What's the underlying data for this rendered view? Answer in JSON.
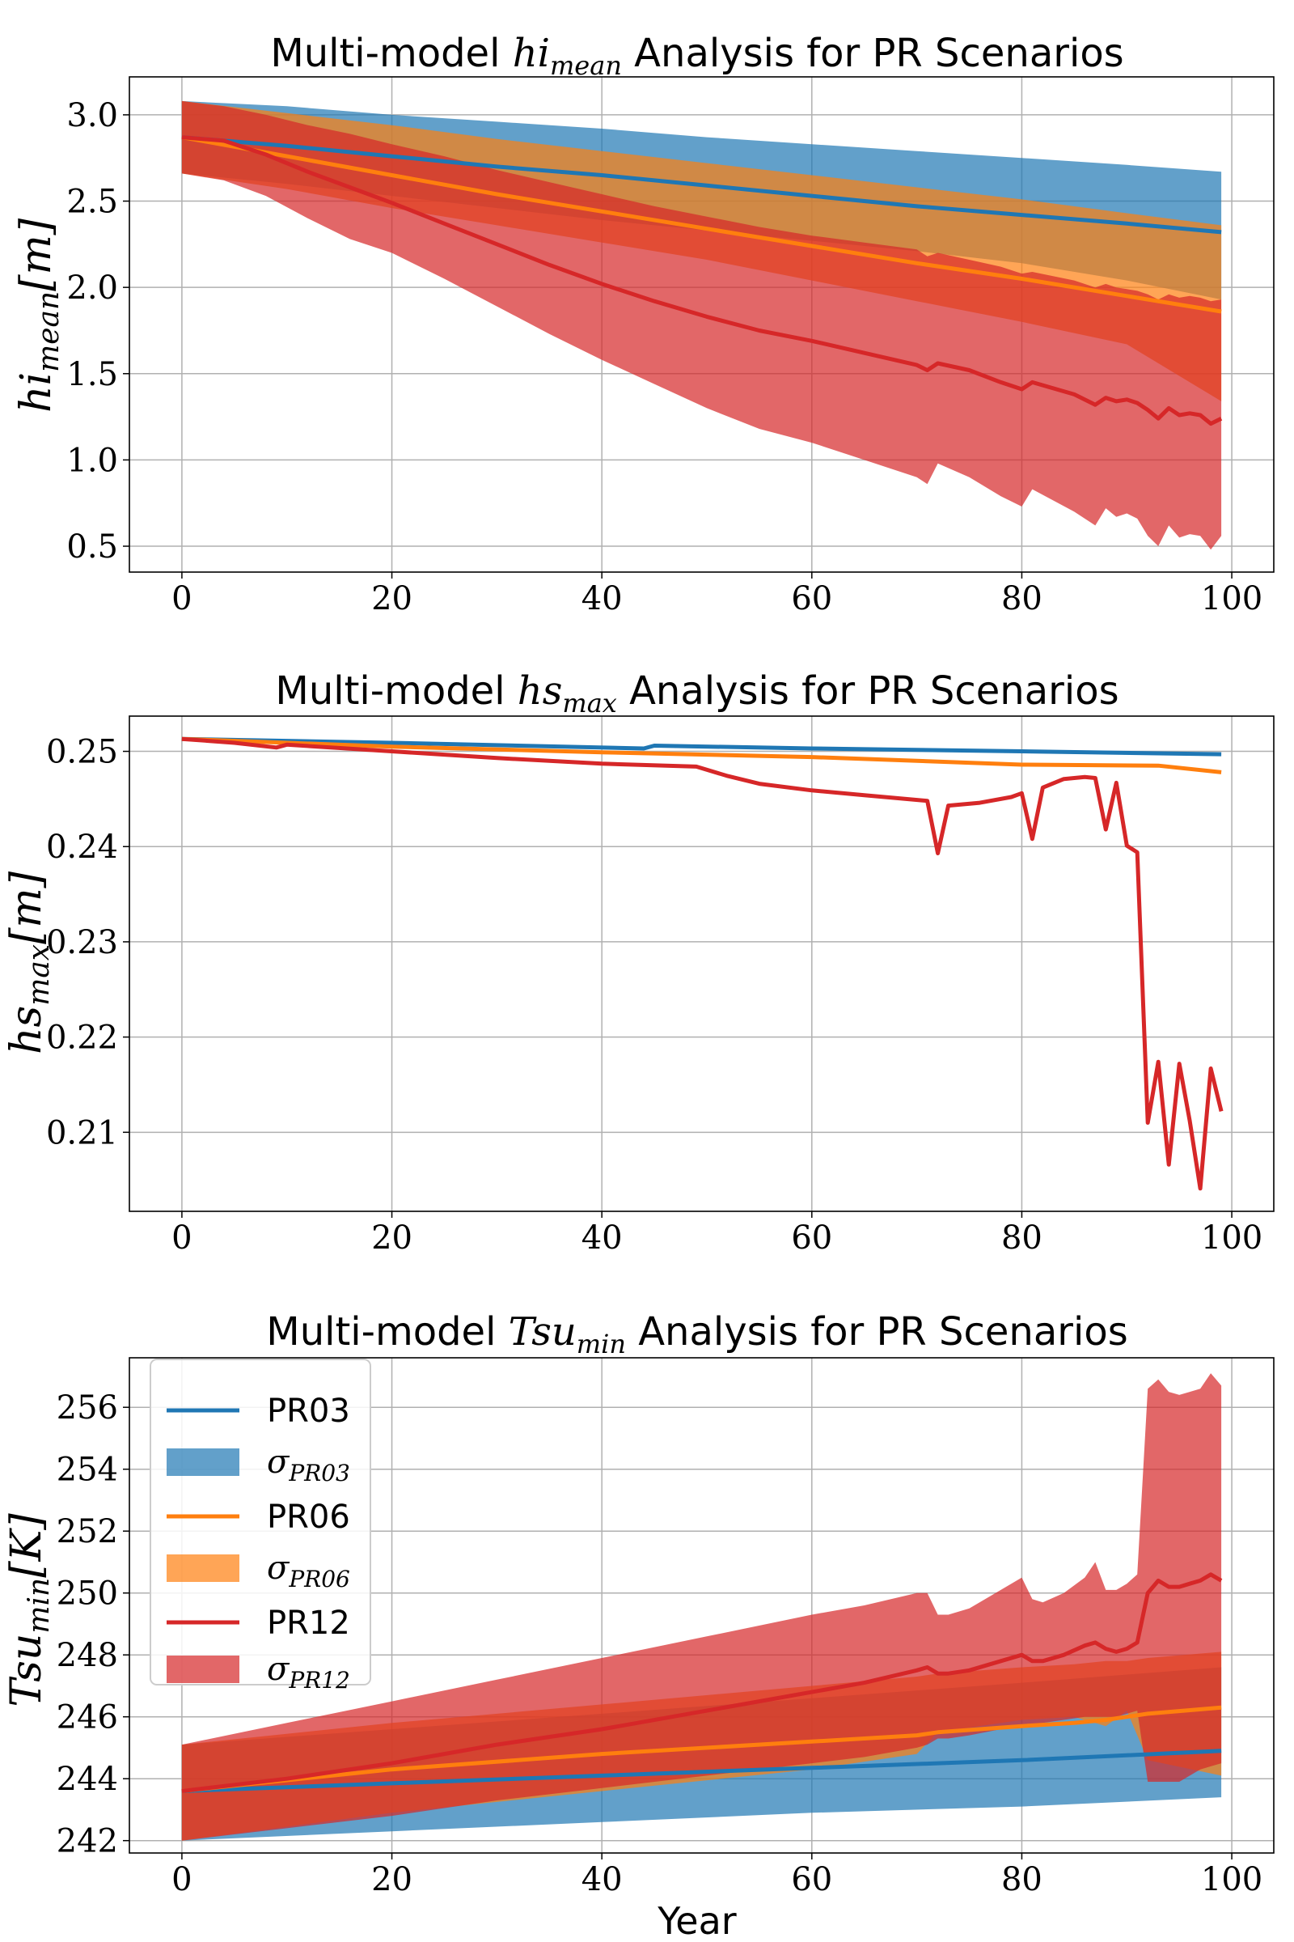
{
  "colors": {
    "PR03": "#1f77b4",
    "PR06": "#ff7f0e",
    "PR12": "#d62728"
  },
  "chart_data": [
    {
      "type": "line",
      "title_prefix": "Multi-model ",
      "title_var": "hi",
      "title_sub": "mean",
      "title_suffix": " Analysis for PR Scenarios",
      "ylabel": "hi",
      "ylabel_sub": "mean",
      "ylabel_unit": "[m]",
      "xlabel": "",
      "xlim": [
        -5,
        104
      ],
      "ylim": [
        0.35,
        3.22
      ],
      "xticks": [
        "0",
        "20",
        "40",
        "60",
        "80",
        "100"
      ],
      "yticks": [
        "0.5",
        "1.0",
        "1.5",
        "2.0",
        "2.5",
        "3.0"
      ],
      "grid": true,
      "series": [
        {
          "name": "PR03",
          "x": [
            0,
            10,
            20,
            30,
            40,
            50,
            60,
            70,
            80,
            90,
            99
          ],
          "y": [
            2.87,
            2.82,
            2.76,
            2.7,
            2.65,
            2.59,
            2.53,
            2.47,
            2.42,
            2.37,
            2.32
          ],
          "band_upper": [
            3.08,
            3.05,
            3.0,
            2.96,
            2.92,
            2.87,
            2.83,
            2.79,
            2.75,
            2.71,
            2.67
          ],
          "band_lower": [
            2.66,
            2.6,
            2.53,
            2.46,
            2.39,
            2.33,
            2.27,
            2.21,
            2.14,
            2.04,
            1.93
          ]
        },
        {
          "name": "PR06",
          "x": [
            0,
            10,
            20,
            30,
            40,
            50,
            60,
            70,
            80,
            90,
            99
          ],
          "y": [
            2.87,
            2.76,
            2.65,
            2.54,
            2.44,
            2.34,
            2.24,
            2.14,
            2.05,
            1.95,
            1.86
          ],
          "band_upper": [
            3.08,
            3.01,
            2.94,
            2.86,
            2.79,
            2.72,
            2.65,
            2.58,
            2.51,
            2.43,
            2.36
          ],
          "band_lower": [
            2.66,
            2.57,
            2.46,
            2.36,
            2.26,
            2.16,
            2.04,
            1.92,
            1.8,
            1.67,
            1.34
          ]
        },
        {
          "name": "PR12",
          "x": [
            0,
            4,
            8,
            12,
            16,
            20,
            25,
            30,
            35,
            40,
            45,
            50,
            55,
            60,
            65,
            70,
            71,
            72,
            75,
            78,
            80,
            81,
            85,
            87,
            88,
            89,
            90,
            91,
            92,
            93,
            94,
            95,
            96,
            97,
            98,
            99
          ],
          "y": [
            2.87,
            2.85,
            2.77,
            2.67,
            2.58,
            2.49,
            2.37,
            2.25,
            2.13,
            2.02,
            1.92,
            1.83,
            1.75,
            1.69,
            1.62,
            1.55,
            1.52,
            1.56,
            1.52,
            1.45,
            1.41,
            1.45,
            1.38,
            1.32,
            1.36,
            1.34,
            1.35,
            1.33,
            1.29,
            1.24,
            1.3,
            1.26,
            1.27,
            1.26,
            1.21,
            1.24
          ],
          "band_upper": [
            3.08,
            3.05,
            3.0,
            2.94,
            2.89,
            2.83,
            2.76,
            2.68,
            2.61,
            2.54,
            2.47,
            2.41,
            2.35,
            2.3,
            2.26,
            2.22,
            2.18,
            2.2,
            2.16,
            2.12,
            2.08,
            2.09,
            2.04,
            2.0,
            2.02,
            2.0,
            1.99,
            1.98,
            1.96,
            1.93,
            1.96,
            1.94,
            1.95,
            1.94,
            1.92,
            1.93
          ],
          "band_lower": [
            2.66,
            2.62,
            2.53,
            2.4,
            2.28,
            2.2,
            2.05,
            1.89,
            1.73,
            1.58,
            1.44,
            1.3,
            1.18,
            1.1,
            1.0,
            0.9,
            0.86,
            0.98,
            0.9,
            0.79,
            0.73,
            0.83,
            0.7,
            0.62,
            0.72,
            0.67,
            0.69,
            0.66,
            0.56,
            0.5,
            0.62,
            0.55,
            0.57,
            0.56,
            0.48,
            0.56
          ]
        }
      ]
    },
    {
      "type": "line",
      "title_prefix": "Multi-model ",
      "title_var": "hs",
      "title_sub": "max",
      "title_suffix": " Analysis for PR Scenarios",
      "ylabel": "hs",
      "ylabel_sub": "max",
      "ylabel_unit": "[m]",
      "xlabel": "",
      "xlim": [
        -5,
        104
      ],
      "ylim": [
        0.2017,
        0.2537
      ],
      "xticks": [
        "0",
        "20",
        "40",
        "60",
        "80",
        "100"
      ],
      "yticks": [
        "0.21",
        "0.22",
        "0.23",
        "0.24",
        "0.25"
      ],
      "grid": true,
      "series": [
        {
          "name": "PR03",
          "x": [
            0,
            20,
            44,
            45,
            60,
            80,
            99
          ],
          "y": [
            0.2513,
            0.2509,
            0.2503,
            0.2506,
            0.2503,
            0.25,
            0.2497
          ]
        },
        {
          "name": "PR06",
          "x": [
            0,
            20,
            40,
            60,
            70,
            80,
            93,
            99
          ],
          "y": [
            0.2513,
            0.2505,
            0.2499,
            0.2494,
            0.249,
            0.2486,
            0.2485,
            0.2478
          ]
        },
        {
          "name": "PR12",
          "x": [
            0,
            5,
            9,
            10,
            20,
            30,
            40,
            49,
            52,
            55,
            60,
            65,
            71,
            72,
            73,
            76,
            79,
            80,
            81,
            82,
            84,
            86,
            87,
            88,
            89,
            90,
            91,
            92,
            93,
            94,
            95,
            96,
            97,
            98,
            99
          ],
          "y": [
            0.2513,
            0.2509,
            0.2504,
            0.2507,
            0.25,
            0.2493,
            0.2487,
            0.2484,
            0.2474,
            0.2466,
            0.2459,
            0.2454,
            0.2448,
            0.2393,
            0.2443,
            0.2446,
            0.2452,
            0.2456,
            0.2408,
            0.2462,
            0.2471,
            0.2473,
            0.2472,
            0.2418,
            0.2467,
            0.2401,
            0.2394,
            0.211,
            0.2174,
            0.2066,
            0.2172,
            0.2112,
            0.2041,
            0.2167,
            0.2122
          ]
        }
      ]
    },
    {
      "type": "line",
      "title_prefix": "Multi-model ",
      "title_var": "Tsu",
      "title_sub": "min",
      "title_suffix": " Analysis for PR Scenarios",
      "ylabel": "Tsu",
      "ylabel_sub": "min",
      "ylabel_unit": "[K]",
      "xlabel": "Year",
      "xlim": [
        -5,
        104
      ],
      "ylim": [
        241.6,
        257.6
      ],
      "xticks": [
        "0",
        "20",
        "40",
        "60",
        "80",
        "100"
      ],
      "yticks": [
        "242",
        "244",
        "246",
        "248",
        "250",
        "252",
        "254",
        "256"
      ],
      "grid": true,
      "legend": {
        "position": "upper left",
        "entries": [
          {
            "kind": "line",
            "series": "PR03",
            "label": "PR03"
          },
          {
            "kind": "band",
            "series": "PR03",
            "label": "σ",
            "sub": "PR03"
          },
          {
            "kind": "line",
            "series": "PR06",
            "label": "PR06"
          },
          {
            "kind": "band",
            "series": "PR06",
            "label": "σ",
            "sub": "PR06"
          },
          {
            "kind": "line",
            "series": "PR12",
            "label": "PR12"
          },
          {
            "kind": "band",
            "series": "PR12",
            "label": "σ",
            "sub": "PR12"
          }
        ]
      },
      "series": [
        {
          "name": "PR03",
          "x": [
            0,
            20,
            40,
            60,
            80,
            99
          ],
          "y": [
            243.6,
            243.85,
            244.1,
            244.35,
            244.6,
            244.9
          ],
          "band_upper": [
            245.1,
            245.6,
            246.1,
            246.6,
            247.1,
            247.6
          ],
          "band_lower": [
            242.0,
            242.3,
            242.6,
            242.9,
            243.1,
            243.4
          ]
        },
        {
          "name": "PR06",
          "x": [
            0,
            20,
            40,
            60,
            70,
            72,
            80,
            85,
            88,
            90,
            92,
            99
          ],
          "y": [
            243.6,
            244.3,
            244.8,
            245.2,
            245.4,
            245.5,
            245.7,
            245.8,
            245.9,
            246.0,
            246.1,
            246.3
          ],
          "band_upper": [
            245.1,
            245.8,
            246.4,
            247.0,
            247.3,
            247.4,
            247.6,
            247.7,
            247.8,
            247.8,
            247.9,
            248.1
          ],
          "band_lower": [
            242.0,
            242.9,
            243.6,
            244.3,
            244.8,
            245.5,
            245.9,
            246.0,
            245.7,
            246.2,
            244.6,
            244.1
          ]
        },
        {
          "name": "PR12",
          "x": [
            0,
            10,
            20,
            30,
            40,
            50,
            60,
            65,
            70,
            71,
            72,
            73,
            75,
            78,
            80,
            81,
            82,
            84,
            86,
            87,
            88,
            89,
            90,
            91,
            92,
            93,
            94,
            95,
            96,
            97,
            98,
            99
          ],
          "y": [
            243.6,
            244.0,
            244.5,
            245.1,
            245.6,
            246.2,
            246.8,
            247.1,
            247.5,
            247.6,
            247.4,
            247.4,
            247.5,
            247.8,
            248.0,
            247.8,
            247.8,
            248.0,
            248.3,
            248.4,
            248.2,
            248.1,
            248.2,
            248.4,
            250.0,
            250.4,
            250.2,
            250.2,
            250.3,
            250.4,
            250.6,
            250.4
          ],
          "band_upper": [
            245.1,
            245.8,
            246.5,
            247.2,
            247.9,
            248.6,
            249.3,
            249.6,
            250.0,
            250.0,
            249.3,
            249.3,
            249.5,
            250.1,
            250.5,
            249.8,
            249.7,
            250.0,
            250.5,
            251.0,
            250.1,
            250.1,
            250.3,
            250.6,
            256.6,
            256.9,
            256.5,
            256.4,
            256.5,
            256.6,
            257.1,
            256.7
          ],
          "band_lower": [
            242.0,
            242.4,
            242.8,
            243.3,
            243.7,
            244.1,
            244.5,
            244.7,
            245.0,
            245.1,
            245.3,
            245.3,
            245.4,
            245.6,
            245.7,
            245.7,
            245.8,
            245.9,
            246.0,
            246.0,
            246.0,
            246.0,
            246.1,
            246.2,
            243.9,
            243.9,
            243.9,
            243.9,
            244.1,
            244.3,
            244.4,
            244.5
          ]
        }
      ]
    }
  ]
}
